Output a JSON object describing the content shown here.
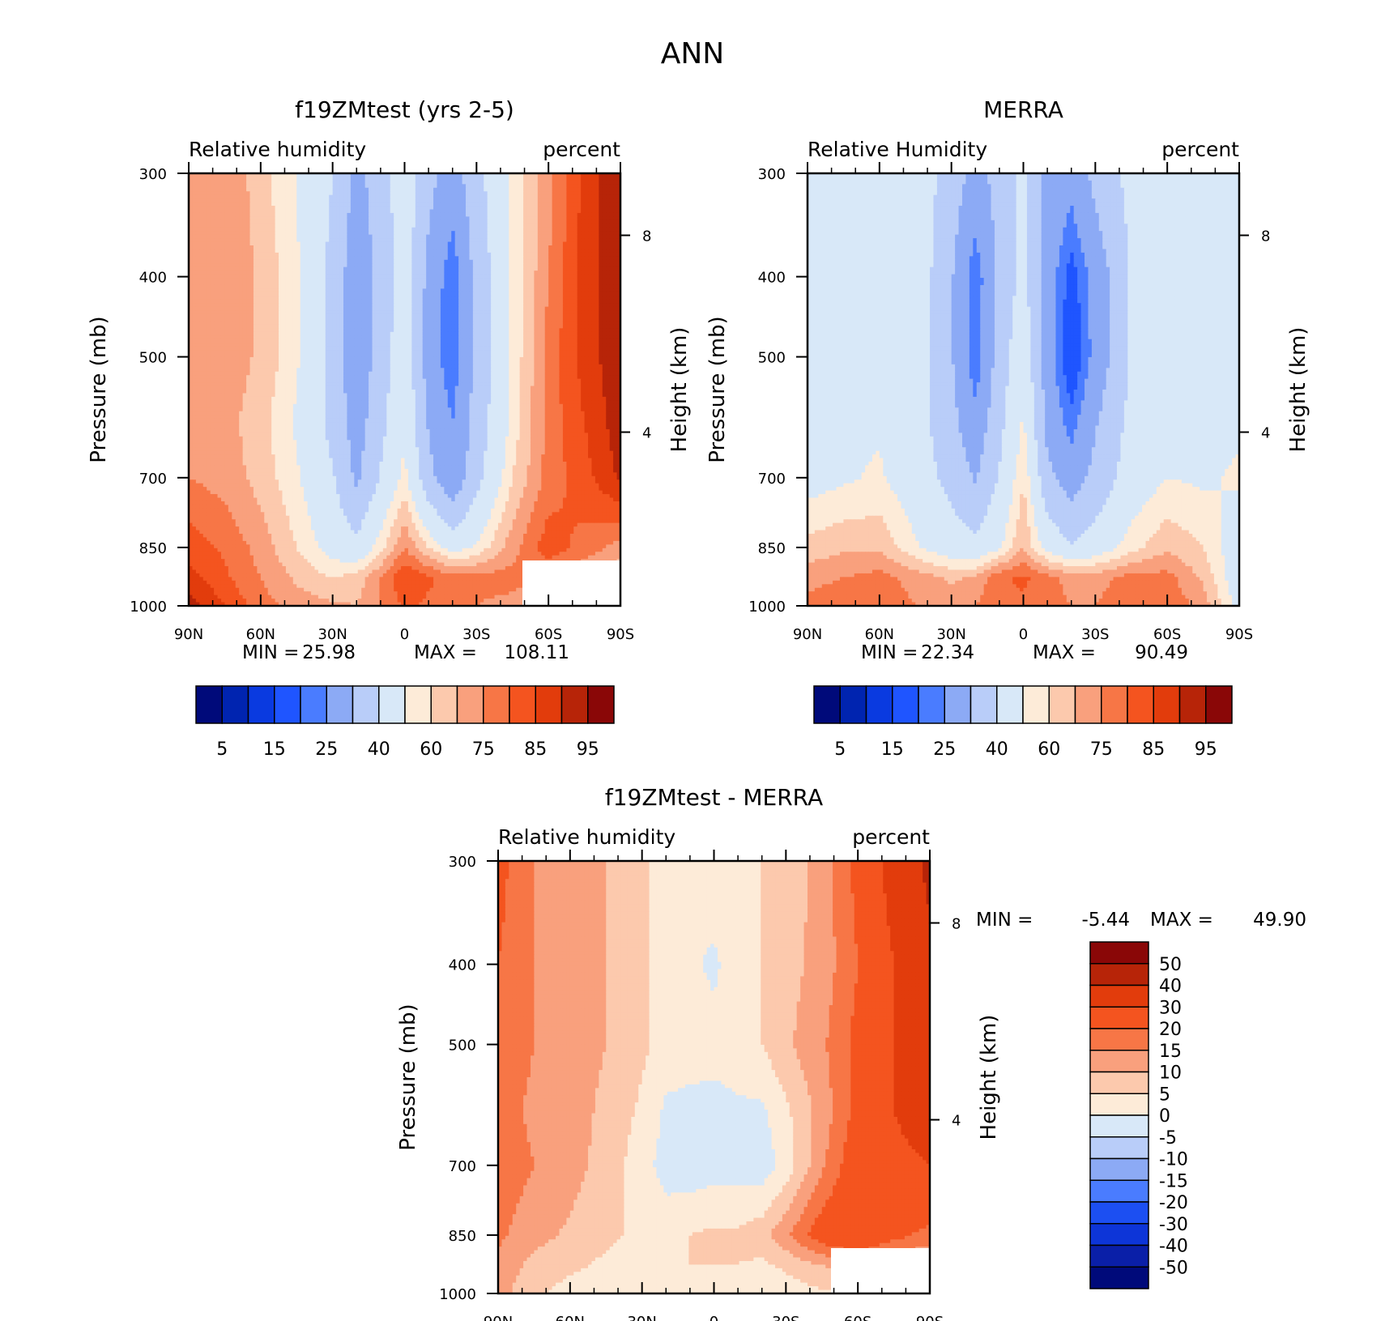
{
  "figure": {
    "title": "ANN"
  },
  "colors": {
    "rh_palette": [
      "#000a7a",
      "#0024b0",
      "#0a3ae0",
      "#1f55ff",
      "#4a7cff",
      "#8caaf5",
      "#b9cdf9",
      "#d8e8f8",
      "#fdebd8",
      "#fcc9ad",
      "#f9a07d",
      "#f77646",
      "#f4541f",
      "#e23c0c",
      "#b72408",
      "#8a0707"
    ],
    "diff_palette": [
      "#000a7a",
      "#0a1fa8",
      "#0d35d8",
      "#1c4ff2",
      "#4a7cff",
      "#8caaf5",
      "#b9cdf9",
      "#d8e8f8",
      "#fdebd8",
      "#fcc9ad",
      "#f9a07d",
      "#f77646",
      "#f4541f",
      "#e23c0c",
      "#b72408",
      "#8a0707"
    ]
  },
  "chart_data": [
    {
      "type": "heatmap",
      "title": "f19ZMtest (yrs 2-5)",
      "left_label": "Relative humidity",
      "right_label": "percent",
      "ylabel": "Pressure (mb)",
      "ylabel_right": "Height (km)",
      "x_ticks": [
        "90N",
        "60N",
        "30N",
        "0",
        "30S",
        "60S",
        "90S"
      ],
      "y_ticks": [
        "300",
        "400",
        "500",
        "700",
        "850",
        "1000"
      ],
      "y2_ticks": [
        "8",
        "4"
      ],
      "stats": {
        "min_label": "MIN =",
        "min": "25.98",
        "max_label": "MAX =",
        "max": "108.11"
      },
      "colorbar_labels": [
        "5",
        "15",
        "25",
        "40",
        "60",
        "75",
        "85",
        "95"
      ],
      "x": [
        -90,
        -75,
        -60,
        -45,
        -30,
        -20,
        -10,
        0,
        10,
        20,
        30,
        45,
        60,
        75,
        90
      ],
      "y": [
        300,
        400,
        500,
        600,
        700,
        850,
        925,
        1000
      ],
      "z": [
        [
          76,
          80,
          72,
          65,
          55,
          42,
          50,
          62,
          48,
          40,
          52,
          66,
          78,
          92,
          99
        ],
        [
          78,
          80,
          74,
          66,
          52,
          38,
          48,
          60,
          42,
          30,
          48,
          66,
          80,
          92,
          99
        ],
        [
          79,
          78,
          74,
          66,
          52,
          37,
          50,
          62,
          40,
          30,
          48,
          66,
          82,
          92,
          99
        ],
        [
          78,
          77,
          72,
          64,
          52,
          40,
          52,
          64,
          44,
          35,
          49,
          67,
          82,
          90,
          98
        ],
        [
          80,
          78,
          73,
          66,
          56,
          43,
          56,
          67,
          48,
          37,
          52,
          70,
          82,
          88,
          96
        ],
        [
          88,
          84,
          78,
          70,
          62,
          58,
          68,
          80,
          70,
          62,
          66,
          78,
          88,
          83,
          78
        ],
        [
          92,
          86,
          80,
          74,
          70,
          72,
          80,
          90,
          86,
          82,
          82,
          82,
          80,
          75,
          70
        ],
        [
          98,
          90,
          82,
          78,
          76,
          75,
          80,
          86,
          84,
          82,
          80,
          78,
          75,
          72,
          70
        ]
      ]
    },
    {
      "type": "heatmap",
      "title": "MERRA",
      "left_label": "Relative Humidity",
      "right_label": "percent",
      "ylabel": "Pressure (mb)",
      "ylabel_right": "Height (km)",
      "x_ticks": [
        "90N",
        "60N",
        "30N",
        "0",
        "30S",
        "60S",
        "90S"
      ],
      "y_ticks": [
        "300",
        "400",
        "500",
        "700",
        "850",
        "1000"
      ],
      "y2_ticks": [
        "8",
        "4"
      ],
      "stats": {
        "min_label": "MIN =",
        "min": "22.34",
        "max_label": "MAX =",
        "max": "90.49"
      },
      "colorbar_labels": [
        "5",
        "15",
        "25",
        "40",
        "60",
        "75",
        "85",
        "95"
      ],
      "x": [
        -90,
        -75,
        -60,
        -45,
        -30,
        -20,
        -10,
        0,
        10,
        20,
        30,
        45,
        60,
        75,
        90
      ],
      "y": [
        300,
        400,
        500,
        600,
        700,
        850,
        925,
        1000
      ],
      "z": [
        [
          60,
          64,
          64,
          62,
          50,
          42,
          48,
          58,
          42,
          38,
          48,
          58,
          63,
          62,
          62
        ],
        [
          62,
          64,
          64,
          62,
          46,
          30,
          48,
          58,
          40,
          27,
          38,
          56,
          64,
          63,
          64
        ],
        [
          62,
          64,
          64,
          62,
          46,
          30,
          50,
          62,
          40,
          24,
          38,
          56,
          64,
          63,
          64
        ],
        [
          62,
          64,
          64,
          60,
          48,
          38,
          52,
          66,
          42,
          32,
          44,
          58,
          64,
          62,
          64
        ],
        [
          62,
          64,
          66,
          60,
          52,
          44,
          56,
          70,
          48,
          40,
          48,
          60,
          65,
          64,
          66
        ],
        [
          72,
          74,
          74,
          66,
          60,
          58,
          64,
          75,
          62,
          56,
          60,
          68,
          74,
          70,
          60
        ],
        [
          78,
          80,
          82,
          78,
          74,
          76,
          84,
          86,
          82,
          78,
          78,
          82,
          82,
          74,
          60
        ],
        [
          82,
          84,
          84,
          80,
          78,
          80,
          84,
          84,
          82,
          80,
          80,
          84,
          84,
          78,
          62
        ]
      ]
    },
    {
      "type": "heatmap",
      "title": "f19ZMtest - MERRA",
      "left_label": "Relative humidity",
      "right_label": "percent",
      "ylabel": "Pressure (mb)",
      "ylabel_right": "Height (km)",
      "x_ticks": [
        "90N",
        "60N",
        "30N",
        "0",
        "30S",
        "60S",
        "90S"
      ],
      "y_ticks": [
        "300",
        "400",
        "500",
        "700",
        "850",
        "1000"
      ],
      "y2_ticks": [
        "8",
        "4"
      ],
      "stats": {
        "min_label": "MIN =",
        "min": "-5.44",
        "max_label": "MAX =",
        "max": "49.90"
      },
      "colorbar_labels": [
        "50",
        "40",
        "30",
        "20",
        "15",
        "10",
        "5",
        "0",
        "-5",
        "-10",
        "-15",
        "-20",
        "-30",
        "-40",
        "-50"
      ],
      "x": [
        -90,
        -75,
        -60,
        -45,
        -30,
        -20,
        -10,
        0,
        10,
        20,
        30,
        45,
        60,
        75,
        90
      ],
      "y": [
        300,
        400,
        500,
        600,
        700,
        850,
        925,
        1000
      ],
      "z": [
        [
          22,
          15,
          12,
          10,
          6,
          3,
          2,
          3,
          4,
          5,
          7,
          12,
          22,
          34,
          42
        ],
        [
          20,
          15,
          12,
          10,
          6,
          3,
          1,
          -1,
          3,
          5,
          8,
          12,
          20,
          30,
          38
        ],
        [
          18,
          15,
          12,
          10,
          6,
          3,
          3,
          2,
          3,
          5,
          9,
          14,
          22,
          30,
          35
        ],
        [
          17,
          14,
          12,
          9,
          4,
          -1,
          -2,
          -2,
          -1,
          -1,
          4,
          12,
          22,
          30,
          34
        ],
        [
          18,
          15,
          12,
          8,
          2,
          -2,
          -3,
          -2,
          -2,
          -3,
          2,
          14,
          25,
          28,
          30
        ],
        [
          16,
          12,
          9,
          6,
          4,
          3,
          5,
          6,
          6,
          8,
          14,
          24,
          28,
          22,
          18
        ],
        [
          14,
          8,
          6,
          4,
          3,
          5,
          5,
          5,
          5,
          4,
          6,
          10,
          12,
          10,
          8
        ],
        [
          12,
          6,
          3,
          2,
          1,
          2,
          3,
          4,
          3,
          2,
          2,
          4,
          6,
          6,
          8
        ]
      ]
    }
  ]
}
